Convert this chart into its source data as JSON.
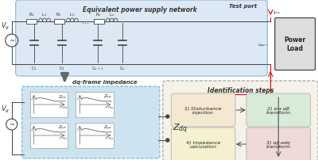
{
  "top_box_color": "#dce9f5",
  "top_box_label": "Equivalent power supply network",
  "test_port_label": "Test port",
  "power_load_label": "Power\nLoad",
  "vg_label": "V$_g$",
  "ipcc_label": "i$_{pcc}$",
  "upcc_label": "u$_{pcc}$",
  "dq_label": "dq-frame impedance",
  "zdq_label": "Z$_{dq}$",
  "zdq_box_color": "#cde3f0",
  "sub_labels": [
    "Z$_{dd}$",
    "Z$_{dq}$",
    "Z$_{qd}$",
    "Z$_{qq}$"
  ],
  "id_steps_label": "Identification steps",
  "step1_label": "1) Disturbance\ninjection",
  "step2_label": "2) α→ αβ\ntransform",
  "step3_label": "3) αβ→dq\ntransform",
  "step4_label": "4) Impedance\ncalculation",
  "step1_color": "#f5e8d0",
  "step2_color": "#d8ead8",
  "step3_color": "#eedad8",
  "step4_color": "#f5f0d0",
  "wire_color": "#444444",
  "bg_color": "#ffffff"
}
